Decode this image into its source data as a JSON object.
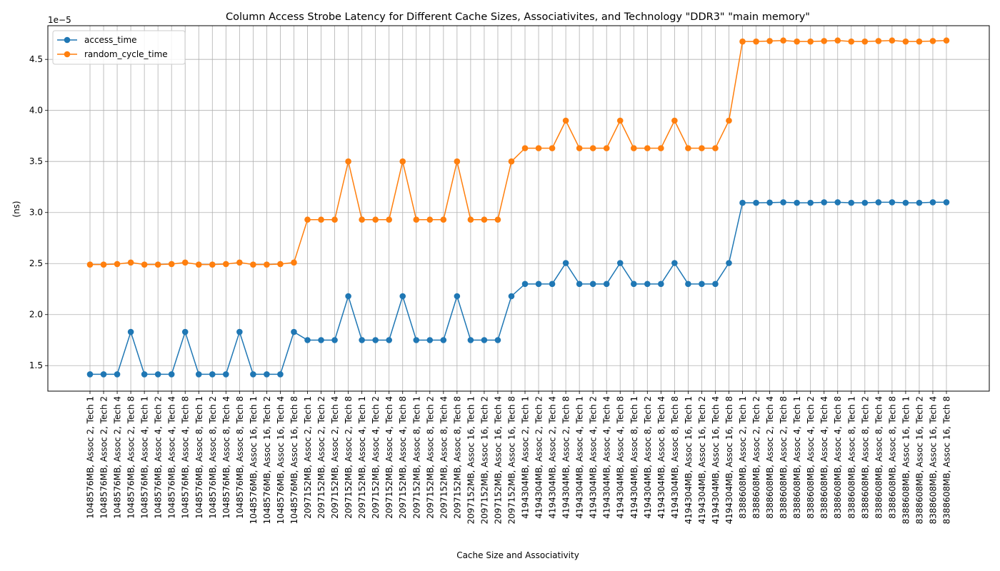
{
  "chart_data": {
    "type": "line",
    "title": "Column Access Strobe Latency for Different Cache Sizes, Associativites, and Technology \"DDR3\" \"main memory\"",
    "xlabel": "Cache Size and Associativity",
    "ylabel": "(ns)",
    "y_offset_text": "1e−5",
    "ylim": [
      1.25e-05,
      4.83e-05
    ],
    "yticks": [
      1.5e-05,
      2e-05,
      2.5e-05,
      3e-05,
      3.5e-05,
      4e-05,
      4.5e-05
    ],
    "ytick_labels": [
      "1.5",
      "2.0",
      "2.5",
      "3.0",
      "3.5",
      "4.0",
      "4.5"
    ],
    "grid": true,
    "legend_position": "upper-left",
    "categories": [
      "1048576MB, Assoc 2, Tech 1",
      "1048576MB, Assoc 2, Tech 2",
      "1048576MB, Assoc 2, Tech 4",
      "1048576MB, Assoc 2, Tech 8",
      "1048576MB, Assoc 4, Tech 1",
      "1048576MB, Assoc 4, Tech 2",
      "1048576MB, Assoc 4, Tech 4",
      "1048576MB, Assoc 4, Tech 8",
      "1048576MB, Assoc 8, Tech 1",
      "1048576MB, Assoc 8, Tech 2",
      "1048576MB, Assoc 8, Tech 4",
      "1048576MB, Assoc 8, Tech 8",
      "1048576MB, Assoc 16, Tech 1",
      "1048576MB, Assoc 16, Tech 2",
      "1048576MB, Assoc 16, Tech 4",
      "1048576MB, Assoc 16, Tech 8",
      "2097152MB, Assoc 2, Tech 1",
      "2097152MB, Assoc 2, Tech 2",
      "2097152MB, Assoc 2, Tech 4",
      "2097152MB, Assoc 2, Tech 8",
      "2097152MB, Assoc 4, Tech 1",
      "2097152MB, Assoc 4, Tech 2",
      "2097152MB, Assoc 4, Tech 4",
      "2097152MB, Assoc 4, Tech 8",
      "2097152MB, Assoc 8, Tech 1",
      "2097152MB, Assoc 8, Tech 2",
      "2097152MB, Assoc 8, Tech 4",
      "2097152MB, Assoc 8, Tech 8",
      "2097152MB, Assoc 16, Tech 1",
      "2097152MB, Assoc 16, Tech 2",
      "2097152MB, Assoc 16, Tech 4",
      "2097152MB, Assoc 16, Tech 8",
      "4194304MB, Assoc 2, Tech 1",
      "4194304MB, Assoc 2, Tech 2",
      "4194304MB, Assoc 2, Tech 4",
      "4194304MB, Assoc 2, Tech 8",
      "4194304MB, Assoc 4, Tech 1",
      "4194304MB, Assoc 4, Tech 2",
      "4194304MB, Assoc 4, Tech 4",
      "4194304MB, Assoc 4, Tech 8",
      "4194304MB, Assoc 8, Tech 1",
      "4194304MB, Assoc 8, Tech 2",
      "4194304MB, Assoc 8, Tech 4",
      "4194304MB, Assoc 8, Tech 8",
      "4194304MB, Assoc 16, Tech 1",
      "4194304MB, Assoc 16, Tech 2",
      "4194304MB, Assoc 16, Tech 4",
      "4194304MB, Assoc 16, Tech 8",
      "8388608MB, Assoc 2, Tech 1",
      "8388608MB, Assoc 2, Tech 2",
      "8388608MB, Assoc 2, Tech 4",
      "8388608MB, Assoc 2, Tech 8",
      "8388608MB, Assoc 4, Tech 1",
      "8388608MB, Assoc 4, Tech 2",
      "8388608MB, Assoc 4, Tech 4",
      "8388608MB, Assoc 4, Tech 8",
      "8388608MB, Assoc 8, Tech 1",
      "8388608MB, Assoc 8, Tech 2",
      "8388608MB, Assoc 8, Tech 4",
      "8388608MB, Assoc 8, Tech 8",
      "8388608MB, Assoc 16, Tech 1",
      "8388608MB, Assoc 16, Tech 2",
      "8388608MB, Assoc 16, Tech 4",
      "8388608MB, Assoc 16, Tech 8"
    ],
    "series": [
      {
        "name": "access_time",
        "color": "#1f77b4",
        "values": [
          1.415e-05,
          1.415e-05,
          1.415e-05,
          1.83e-05,
          1.415e-05,
          1.415e-05,
          1.415e-05,
          1.83e-05,
          1.415e-05,
          1.415e-05,
          1.415e-05,
          1.83e-05,
          1.415e-05,
          1.415e-05,
          1.415e-05,
          1.83e-05,
          1.75e-05,
          1.75e-05,
          1.75e-05,
          2.18e-05,
          1.75e-05,
          1.75e-05,
          1.75e-05,
          2.18e-05,
          1.75e-05,
          1.75e-05,
          1.75e-05,
          2.18e-05,
          1.75e-05,
          1.75e-05,
          1.75e-05,
          2.18e-05,
          2.3e-05,
          2.3e-05,
          2.3e-05,
          2.505e-05,
          2.3e-05,
          2.3e-05,
          2.3e-05,
          2.505e-05,
          2.3e-05,
          2.3e-05,
          2.3e-05,
          2.505e-05,
          2.3e-05,
          2.3e-05,
          2.3e-05,
          2.505e-05,
          3.095e-05,
          3.095e-05,
          3.097e-05,
          3.1e-05,
          3.095e-05,
          3.095e-05,
          3.1e-05,
          3.1e-05,
          3.095e-05,
          3.095e-05,
          3.1e-05,
          3.1e-05,
          3.095e-05,
          3.095e-05,
          3.1e-05,
          3.1e-05
        ]
      },
      {
        "name": "random_cycle_time",
        "color": "#ff7f0e",
        "values": [
          2.49e-05,
          2.49e-05,
          2.495e-05,
          2.51e-05,
          2.49e-05,
          2.49e-05,
          2.495e-05,
          2.51e-05,
          2.49e-05,
          2.49e-05,
          2.495e-05,
          2.51e-05,
          2.49e-05,
          2.49e-05,
          2.495e-05,
          2.51e-05,
          2.93e-05,
          2.93e-05,
          2.93e-05,
          3.5e-05,
          2.93e-05,
          2.93e-05,
          2.93e-05,
          3.5e-05,
          2.93e-05,
          2.93e-05,
          2.93e-05,
          3.5e-05,
          2.93e-05,
          2.93e-05,
          2.93e-05,
          3.5e-05,
          3.63e-05,
          3.63e-05,
          3.63e-05,
          3.9e-05,
          3.63e-05,
          3.63e-05,
          3.63e-05,
          3.9e-05,
          3.63e-05,
          3.63e-05,
          3.63e-05,
          3.9e-05,
          3.63e-05,
          3.63e-05,
          3.63e-05,
          3.9e-05,
          4.675e-05,
          4.675e-05,
          4.68e-05,
          4.685e-05,
          4.675e-05,
          4.675e-05,
          4.68e-05,
          4.685e-05,
          4.675e-05,
          4.675e-05,
          4.68e-05,
          4.685e-05,
          4.675e-05,
          4.675e-05,
          4.68e-05,
          4.685e-05
        ]
      }
    ]
  }
}
